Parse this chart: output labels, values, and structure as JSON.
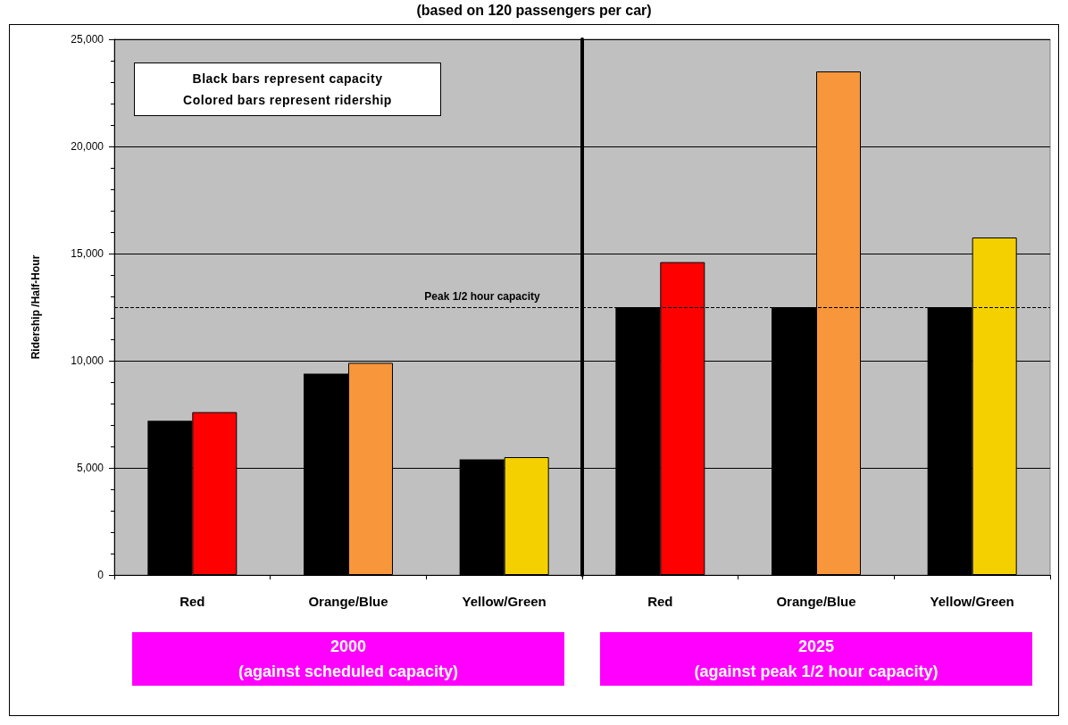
{
  "chart_data": [
    {
      "type": "bar",
      "title": "(based on 120 passengers per car)",
      "ylabel": "Ridership /Half-Hour",
      "xlabel": "2000\n(against scheduled capacity)",
      "categories": [
        "Red",
        "Orange/Blue",
        "Yellow/Green"
      ],
      "series": [
        {
          "color": "#000000",
          "values": [
            7200,
            9400,
            5400
          ]
        },
        {
          "colors": [
            "#ff0000",
            "#f7963b",
            "#f5d000"
          ],
          "values": [
            7600,
            9900,
            5500
          ]
        }
      ],
      "ylim": [
        0,
        25000
      ],
      "yticks": [
        {
          "value": 0,
          "label": "0"
        },
        {
          "value": 5000,
          "label": "5,000"
        },
        {
          "value": 10000,
          "label": "10,000"
        },
        {
          "value": 15000,
          "label": "15,000"
        },
        {
          "value": 20000,
          "label": "20,000"
        },
        {
          "value": 25000,
          "label": "25,000"
        }
      ],
      "grid": "y",
      "ref_lines": [
        {
          "axis": "y",
          "value": 12500,
          "label": "Peak 1/2 hour capacity",
          "line_style": "dashed",
          "color": "#000000"
        }
      ],
      "annotations": [
        "Black bars represent capacity",
        "Colored bars represent ridership"
      ]
    },
    {
      "type": "bar",
      "xlabel": "2025\n(against peak 1/2 hour capacity)",
      "categories": [
        "Red",
        "Orange/Blue",
        "Yellow/Green"
      ],
      "series": [
        {
          "color": "#000000",
          "values": [
            12500,
            12500,
            12500
          ]
        },
        {
          "colors": [
            "#ff0000",
            "#f7963b",
            "#f5d000"
          ],
          "values": [
            14600,
            23500,
            15750
          ]
        }
      ],
      "ylim": [
        0,
        25000
      ],
      "yticks": [
        0,
        5000,
        10000,
        15000,
        20000,
        25000
      ],
      "grid": "y",
      "tick_labels": "x",
      "ref_lines": [
        {
          "axis": "y",
          "value": 12500,
          "line_style": "dashed",
          "color": "#000000"
        }
      ]
    }
  ]
}
